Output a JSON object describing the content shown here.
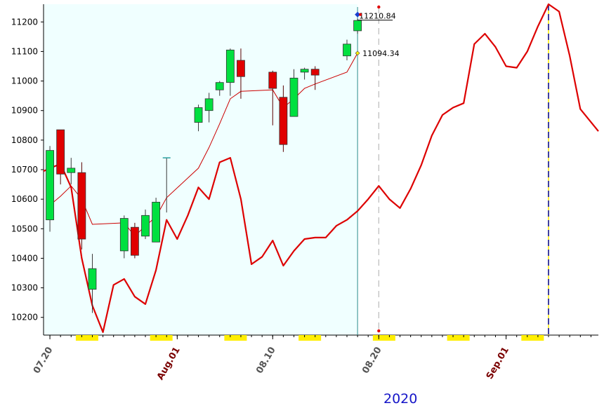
{
  "chart_data": {
    "type": "candlestick+line",
    "year_label": "2020",
    "y_ticks": [
      10200,
      10300,
      10400,
      10500,
      10600,
      10700,
      10800,
      10900,
      11000,
      11100,
      11200
    ],
    "ylim": [
      10140,
      11260
    ],
    "x_ticks": [
      {
        "label": "07.20",
        "day": 0,
        "color": "#555555"
      },
      {
        "label": "Aug.01",
        "day": 12,
        "color": "#7a0000"
      },
      {
        "label": "08.10",
        "day": 21,
        "color": "#555555"
      },
      {
        "label": "08.20",
        "day": 31,
        "color": "#555555"
      },
      {
        "label": "Sep.01",
        "day": 43,
        "color": "#7a0000"
      }
    ],
    "xlim": [
      -0.6,
      51.7
    ],
    "weekend_markers": [
      3.5,
      10.5,
      17.5,
      24.5,
      31.5,
      38.5,
      45.5
    ],
    "candles": [
      {
        "day": 0,
        "open": 10530,
        "high": 10780,
        "low": 10490,
        "close": 10765
      },
      {
        "day": 1,
        "open": 10835,
        "high": 10835,
        "low": 10650,
        "close": 10685
      },
      {
        "day": 2,
        "open": 10690,
        "high": 10740,
        "low": 10650,
        "close": 10705
      },
      {
        "day": 3,
        "open": 10690,
        "high": 10725,
        "low": 10430,
        "close": 10465
      },
      {
        "day": 4,
        "open": 10295,
        "high": 10415,
        "low": 10215,
        "close": 10365
      },
      {
        "day": 7,
        "open": 10425,
        "high": 10545,
        "low": 10400,
        "close": 10535
      },
      {
        "day": 8,
        "open": 10505,
        "high": 10520,
        "low": 10400,
        "close": 10410
      },
      {
        "day": 9,
        "open": 10475,
        "high": 10565,
        "low": 10465,
        "close": 10545
      },
      {
        "day": 10,
        "open": 10455,
        "high": 10605,
        "low": 10455,
        "close": 10590
      },
      {
        "day": 11,
        "open": 10740,
        "high": 10740,
        "low": 10555,
        "close": 10740
      },
      {
        "day": 14,
        "open": 10860,
        "high": 10920,
        "low": 10830,
        "close": 10910
      },
      {
        "day": 15,
        "open": 10900,
        "high": 10960,
        "low": 10860,
        "close": 10940
      },
      {
        "day": 16,
        "open": 10970,
        "high": 11000,
        "low": 10950,
        "close": 10995
      },
      {
        "day": 17,
        "open": 10995,
        "high": 11110,
        "low": 10950,
        "close": 11105
      },
      {
        "day": 18,
        "open": 11070,
        "high": 11110,
        "low": 10940,
        "close": 11015
      },
      {
        "day": 21,
        "open": 11030,
        "high": 11035,
        "low": 10850,
        "close": 10975
      },
      {
        "day": 22,
        "open": 10945,
        "high": 10985,
        "low": 10760,
        "close": 10785
      },
      {
        "day": 23,
        "open": 10880,
        "high": 11040,
        "low": 10880,
        "close": 11010
      },
      {
        "day": 24,
        "open": 11030,
        "high": 11045,
        "low": 11005,
        "close": 11040
      },
      {
        "day": 25,
        "open": 11040,
        "high": 11050,
        "low": 10970,
        "close": 11020
      },
      {
        "day": 28,
        "open": 11085,
        "high": 11140,
        "low": 11070,
        "close": 11125
      },
      {
        "day": 29,
        "open": 11170,
        "high": 11210.84,
        "low": 11160,
        "close": 11205
      }
    ],
    "moving_average": [
      {
        "day": 0,
        "y": 10580
      },
      {
        "day": 1,
        "y": 10610
      },
      {
        "day": 2,
        "y": 10645
      },
      {
        "day": 3,
        "y": 10600
      },
      {
        "day": 4,
        "y": 10515
      },
      {
        "day": 7,
        "y": 10520
      },
      {
        "day": 8,
        "y": 10475
      },
      {
        "day": 9,
        "y": 10510
      },
      {
        "day": 10,
        "y": 10540
      },
      {
        "day": 11,
        "y": 10605
      },
      {
        "day": 14,
        "y": 10705
      },
      {
        "day": 15,
        "y": 10775
      },
      {
        "day": 16,
        "y": 10855
      },
      {
        "day": 17,
        "y": 10940
      },
      {
        "day": 18,
        "y": 10965
      },
      {
        "day": 21,
        "y": 10970
      },
      {
        "day": 22,
        "y": 10910
      },
      {
        "day": 23,
        "y": 10940
      },
      {
        "day": 24,
        "y": 10975
      },
      {
        "day": 25,
        "y": 10990
      },
      {
        "day": 28,
        "y": 11030
      },
      {
        "day": 29,
        "y": 11094.34
      }
    ],
    "forecast_line": [
      {
        "day": -0.6,
        "y": 10695
      },
      {
        "day": 1,
        "y": 10720
      },
      {
        "day": 2,
        "y": 10640
      },
      {
        "day": 3,
        "y": 10400
      },
      {
        "day": 4,
        "y": 10240
      },
      {
        "day": 5,
        "y": 10150
      },
      {
        "day": 6,
        "y": 10310
      },
      {
        "day": 7,
        "y": 10330
      },
      {
        "day": 8,
        "y": 10270
      },
      {
        "day": 9,
        "y": 10245
      },
      {
        "day": 10,
        "y": 10360
      },
      {
        "day": 11,
        "y": 10530
      },
      {
        "day": 12,
        "y": 10465
      },
      {
        "day": 13,
        "y": 10545
      },
      {
        "day": 14,
        "y": 10640
      },
      {
        "day": 15,
        "y": 10600
      },
      {
        "day": 16,
        "y": 10725
      },
      {
        "day": 17,
        "y": 10740
      },
      {
        "day": 18,
        "y": 10600
      },
      {
        "day": 19,
        "y": 10380
      },
      {
        "day": 20,
        "y": 10405
      },
      {
        "day": 21,
        "y": 10460
      },
      {
        "day": 22,
        "y": 10375
      },
      {
        "day": 23,
        "y": 10425
      },
      {
        "day": 24,
        "y": 10465
      },
      {
        "day": 25,
        "y": 10470
      },
      {
        "day": 26,
        "y": 10470
      },
      {
        "day": 27,
        "y": 10510
      },
      {
        "day": 28,
        "y": 10530
      },
      {
        "day": 29,
        "y": 10560
      },
      {
        "day": 30,
        "y": 10600
      },
      {
        "day": 31,
        "y": 10645
      },
      {
        "day": 32,
        "y": 10600
      },
      {
        "day": 33,
        "y": 10570
      },
      {
        "day": 34,
        "y": 10635
      },
      {
        "day": 35,
        "y": 10715
      },
      {
        "day": 36,
        "y": 10815
      },
      {
        "day": 37,
        "y": 10885
      },
      {
        "day": 38,
        "y": 10910
      },
      {
        "day": 39,
        "y": 10925
      },
      {
        "day": 40,
        "y": 11125
      },
      {
        "day": 41,
        "y": 11160
      },
      {
        "day": 42,
        "y": 11115
      },
      {
        "day": 43,
        "y": 11050
      },
      {
        "day": 44,
        "y": 11045
      },
      {
        "day": 45,
        "y": 11100
      },
      {
        "day": 46,
        "y": 11185
      },
      {
        "day": 47,
        "y": 11260
      },
      {
        "day": 48,
        "y": 11235
      },
      {
        "day": 49,
        "y": 11085
      },
      {
        "day": 50,
        "y": 10905
      },
      {
        "day": 51.7,
        "y": 10830
      }
    ],
    "annotations": {
      "high_label": "11210.84",
      "high_value": 11210.84,
      "ma_label": "11094.34",
      "ma_value": 11094.34
    },
    "shaded_region_days": [
      -0.6,
      29
    ],
    "current_day_line": 29,
    "dashed_cursor_day": 31,
    "forecast_peak_day": 47,
    "colors": {
      "up_candle": "#00e040",
      "down_candle": "#e00000",
      "forecast_line": "#dd0000",
      "ma_line": "#cc0000",
      "shaded_bg": "#f0ffff",
      "weekend_marker": "#ffee00",
      "year_label": "#1515c8"
    }
  }
}
